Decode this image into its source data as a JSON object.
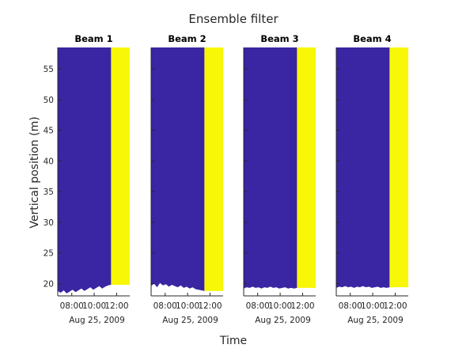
{
  "chart_data": {
    "type": "heatmap",
    "title": "Ensemble filter",
    "xlabel": "Time",
    "ylabel": "Vertical position (m)",
    "date_label": "Aug 25, 2009",
    "x_ticks": [
      "08:00",
      "10:00",
      "12:00"
    ],
    "x_range": [
      "06:45",
      "13:10"
    ],
    "y_ticks": [
      20,
      25,
      30,
      35,
      40,
      45,
      50,
      55
    ],
    "ylim": [
      18,
      58.5
    ],
    "colors": {
      "retained": "#3a25a2",
      "flagged": "#f7f707"
    },
    "flag_start_time": "11:30",
    "panels": [
      {
        "title": "Beam 1",
        "bottom_boundary_m": [
          18.8,
          18.5,
          18.9,
          18.4,
          18.7,
          19.0,
          18.6,
          18.9,
          19.2,
          18.8,
          19.1,
          19.4,
          19.0,
          19.3,
          19.6,
          19.2,
          19.5,
          19.7,
          19.8
        ]
      },
      {
        "title": "Beam 2",
        "bottom_boundary_m": [
          19.6,
          20.0,
          19.4,
          20.1,
          19.7,
          19.9,
          19.5,
          19.8,
          19.6,
          19.4,
          19.7,
          19.3,
          19.5,
          19.2,
          19.4,
          19.1,
          19.0,
          18.9,
          18.8
        ]
      },
      {
        "title": "Beam 3",
        "bottom_boundary_m": [
          19.2,
          19.4,
          19.3,
          19.5,
          19.3,
          19.4,
          19.2,
          19.4,
          19.3,
          19.5,
          19.3,
          19.4,
          19.2,
          19.3,
          19.4,
          19.2,
          19.3,
          19.2,
          19.3
        ]
      },
      {
        "title": "Beam 4",
        "bottom_boundary_m": [
          19.3,
          19.5,
          19.4,
          19.6,
          19.4,
          19.5,
          19.3,
          19.5,
          19.4,
          19.6,
          19.4,
          19.5,
          19.3,
          19.4,
          19.5,
          19.3,
          19.4,
          19.3,
          19.4
        ]
      }
    ]
  }
}
